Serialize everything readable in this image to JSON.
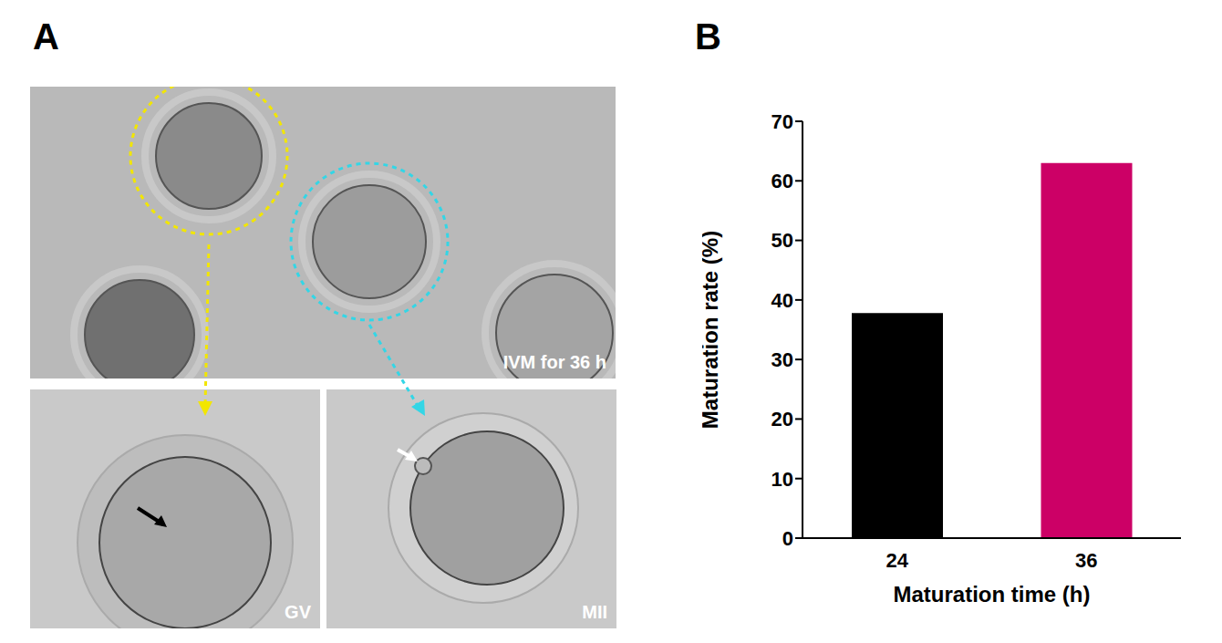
{
  "figure": {
    "panel_labels": [
      "A",
      "B"
    ],
    "images": [
      {
        "label": "IVM for 36 h"
      },
      {
        "label": "GV"
      },
      {
        "label": "MII"
      }
    ]
  },
  "chart_data": {
    "type": "bar",
    "categories": [
      "24",
      "36"
    ],
    "values": [
      37.8,
      63
    ],
    "colors": [
      "#000000",
      "#cc0066"
    ],
    "ylim": [
      0,
      70
    ],
    "yticks": [
      0,
      10,
      20,
      30,
      40,
      50,
      60,
      70
    ],
    "ylabel": "Maturation rate (%)",
    "xlabel": "Maturation time (h)",
    "grid": false
  }
}
